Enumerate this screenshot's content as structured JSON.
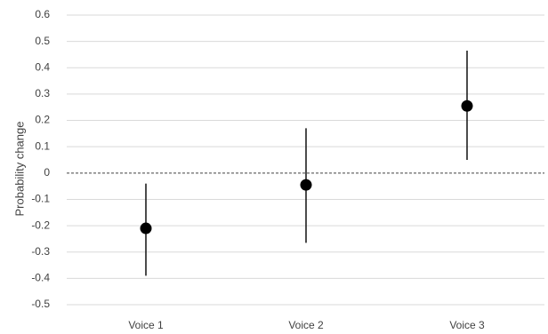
{
  "chart_data": {
    "type": "scatter",
    "title": "",
    "xlabel": "",
    "ylabel": "Probability change",
    "ylim": [
      -0.5,
      0.6
    ],
    "yticks": [
      0.6,
      0.5,
      0.4,
      0.3,
      0.2,
      0.1,
      0,
      -0.1,
      -0.2,
      -0.3,
      -0.4,
      -0.5
    ],
    "ytick_labels": [
      "0.6",
      "0.5",
      "0.4",
      "0.3",
      "0.2",
      "0.1",
      "0",
      "-0.1",
      "-0.2",
      "-0.3",
      "-0.4",
      "-0.5"
    ],
    "categories": [
      "Voice 1",
      "Voice 2",
      "Voice 3"
    ],
    "values": [
      -0.21,
      -0.045,
      0.255
    ],
    "error_low": [
      -0.39,
      -0.265,
      0.05
    ],
    "error_high": [
      -0.04,
      0.17,
      0.465
    ],
    "reference_line": {
      "y": 0,
      "style": "dashed"
    },
    "grid": true,
    "legend": "none",
    "colors": {
      "point": "#000000",
      "grid": "#d9d9d9",
      "text": "#404040",
      "reference": "#404040"
    }
  }
}
